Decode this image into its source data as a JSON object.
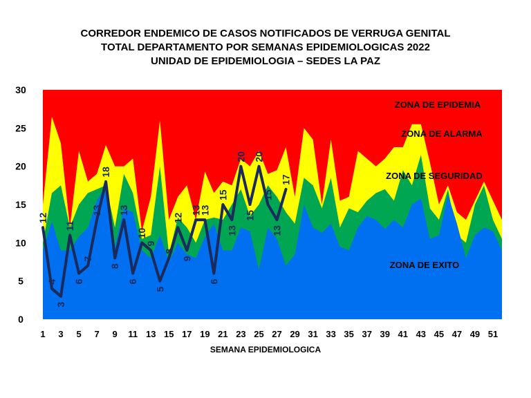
{
  "title_lines": [
    "CORREDOR ENDEMICO DE CASOS NOTIFICADOS DE VERRUGA GENITAL",
    "TOTAL DEPARTAMENTO POR SEMANAS EPIDEMIOLOGICAS 2022",
    "UNIDAD DE EPIDEMIOLOGIA – SEDES LA PAZ"
  ],
  "chart_data": {
    "type": "area",
    "title": "CORREDOR ENDEMICO DE CASOS NOTIFICADOS DE VERRUGA GENITAL TOTAL DEPARTAMENTO POR SEMANAS EPIDEMIOLOGICAS 2022 UNIDAD DE EPIDEMIOLOGIA – SEDES LA PAZ",
    "xlabel": "SEMANA EPIDEMIOLOGICA",
    "ylabel": "",
    "ylim": [
      0,
      30
    ],
    "yticks": [
      0,
      5,
      10,
      15,
      20,
      25,
      30
    ],
    "xlim": [
      1,
      52
    ],
    "xticks": [
      1,
      3,
      5,
      7,
      9,
      11,
      13,
      15,
      17,
      19,
      21,
      23,
      25,
      27,
      29,
      31,
      33,
      35,
      37,
      39,
      41,
      43,
      45,
      47,
      49,
      51
    ],
    "x": [
      1,
      2,
      3,
      4,
      5,
      6,
      7,
      8,
      9,
      10,
      11,
      12,
      13,
      14,
      15,
      16,
      17,
      18,
      19,
      20,
      21,
      22,
      23,
      24,
      25,
      26,
      27,
      28,
      29,
      30,
      31,
      32,
      33,
      34,
      35,
      36,
      37,
      38,
      39,
      40,
      41,
      42,
      43,
      44,
      45,
      46,
      47,
      48,
      49,
      50,
      51,
      52
    ],
    "zones": [
      {
        "name": "ZONA DE EPIDEMIA",
        "color": "#ff0000",
        "values": [
          30,
          30,
          30,
          30,
          30,
          30,
          30,
          30,
          30,
          30,
          30,
          30,
          30,
          30,
          30,
          30,
          30,
          30,
          30,
          30,
          30,
          30,
          30,
          30,
          30,
          30,
          30,
          30,
          30,
          30,
          30,
          30,
          30,
          30,
          30,
          30,
          30,
          30,
          30,
          30,
          30,
          30,
          30,
          30,
          30,
          30,
          30,
          30,
          30,
          30,
          30,
          30
        ]
      },
      {
        "name": "ZONA DE ALARMA",
        "color": "#ffff00",
        "values": [
          15,
          26.5,
          23,
          12,
          22,
          18,
          19,
          22.8,
          20,
          20,
          21,
          11.5,
          16,
          26,
          13,
          16,
          17.5,
          13,
          19.3,
          16.5,
          18,
          17.5,
          21,
          20,
          22,
          19,
          19.5,
          22.5,
          16,
          25,
          23.5,
          15,
          23.5,
          15.5,
          16,
          22,
          21,
          20,
          21,
          22.5,
          22.5,
          25.5,
          25.5,
          20.5,
          15,
          17.5,
          14,
          13,
          15.5,
          18,
          15.5,
          13
        ]
      },
      {
        "name": "ZONA DE SEGURIDAD",
        "color": "#00a651",
        "values": [
          10,
          16.5,
          17.5,
          12,
          15,
          16.5,
          17,
          17.5,
          12,
          19,
          16.5,
          10.5,
          11,
          20,
          8.5,
          13.3,
          12,
          10,
          13,
          13.3,
          13,
          15,
          17,
          13.5,
          15,
          17.5,
          16,
          14,
          12.5,
          18.5,
          17.5,
          14.5,
          18.5,
          12,
          14.5,
          14,
          15.5,
          16.5,
          17,
          15.5,
          19.5,
          17.5,
          21.5,
          14.5,
          13,
          17,
          11,
          10,
          15,
          17.5,
          13,
          10.5
        ]
      },
      {
        "name": "ZONA DE EXITO",
        "color": "#0070f0",
        "values": [
          9,
          12.8,
          9,
          9,
          10.8,
          12,
          15.5,
          17.5,
          9.5,
          14.5,
          14,
          9,
          8,
          11,
          7.5,
          10,
          8.5,
          8,
          10.8,
          12.5,
          9,
          9,
          12,
          11.5,
          6.5,
          12,
          10.5,
          7,
          8.5,
          15,
          12,
          11.3,
          12.5,
          9.5,
          9,
          12,
          13.5,
          13,
          11.8,
          13,
          12,
          15,
          15.8,
          10.5,
          11,
          16.3,
          12.5,
          8,
          11,
          12,
          11.5,
          9
        ]
      }
    ],
    "zone_labels": [
      "ZONA DE EPIDEMIA",
      "ZONA DE ALARMA",
      "ZONA DE  SEGURIDAD",
      "ZONA DE  EXITO"
    ],
    "series": [
      {
        "name": "",
        "color": "#1a2a5a",
        "x": [
          1,
          2,
          3,
          4,
          5,
          6,
          7,
          8,
          9,
          10,
          11,
          12,
          13,
          14,
          15,
          16,
          17,
          18,
          19,
          20,
          21,
          22,
          23,
          24,
          25,
          26,
          27,
          28
        ],
        "values": [
          12,
          4,
          3,
          11,
          6,
          7,
          13,
          18,
          8,
          13,
          6,
          10,
          9,
          5,
          8,
          12,
          9,
          13,
          13,
          6,
          15,
          13,
          20,
          15,
          20,
          15,
          13,
          17
        ]
      }
    ],
    "data_labels": [
      "12",
      "4",
      "3",
      "11",
      "6",
      "7",
      "13",
      "18",
      "8",
      "13",
      "6",
      "10",
      "9",
      "5",
      "8",
      "12",
      "9",
      "13",
      "13",
      "6",
      "15",
      "13",
      "20",
      "15",
      "20",
      "15",
      "13",
      "17"
    ],
    "grid": false,
    "legend": "none"
  }
}
